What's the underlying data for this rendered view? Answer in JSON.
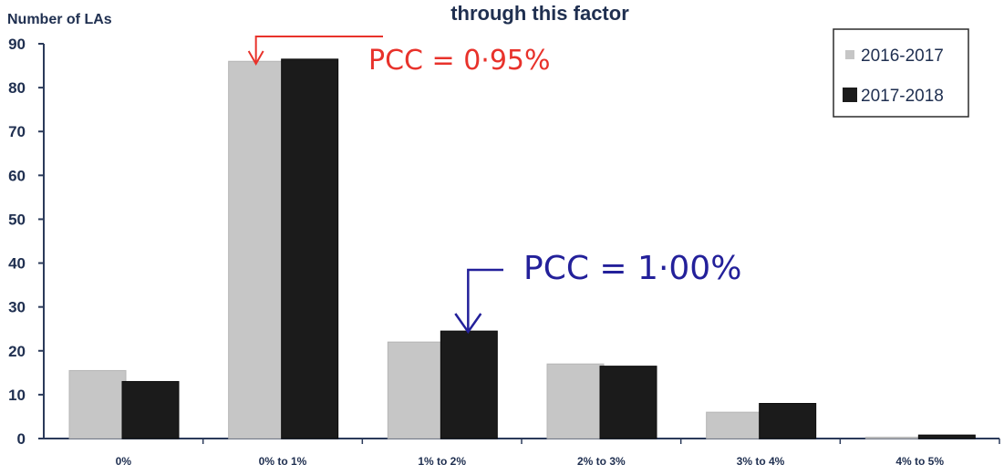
{
  "chart_data": {
    "type": "bar",
    "title": "through this factor",
    "ylabel": "Number of LAs",
    "xlabel": "",
    "categories": [
      "0%",
      "0% to 1%",
      "1% to 2%",
      "2% to 3%",
      "3% to 4%",
      "4% to 5%"
    ],
    "series": [
      {
        "name": "2016-2017",
        "values": [
          15.5,
          86,
          22,
          17,
          6,
          0.3
        ],
        "color": "#c6c6c6"
      },
      {
        "name": "2017-2018",
        "values": [
          13,
          86.5,
          24.5,
          16.5,
          8,
          0.8
        ],
        "color": "#1b1b1b"
      }
    ],
    "ylim": [
      0,
      90
    ],
    "yticks": [
      0,
      10,
      20,
      30,
      40,
      50,
      60,
      70,
      80,
      90
    ],
    "grid": false,
    "legend_position": "top-right",
    "annotations": [
      {
        "text": "PCC = 0·95%",
        "color": "#e8322b",
        "points_to": "0% to 1%"
      },
      {
        "text": "PCC = 1·00%",
        "color": "#23209a",
        "points_to": "1% to 2%"
      }
    ]
  }
}
